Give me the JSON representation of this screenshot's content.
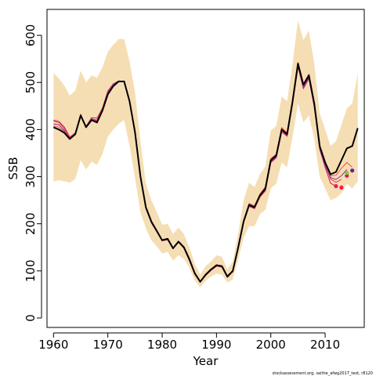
{
  "chart_data": {
    "type": "line",
    "xlabel": "Year",
    "ylabel": "SSB",
    "xlim": [
      1958.8,
      2017.2
    ],
    "ylim": [
      -20,
      655
    ],
    "x_ticks": [
      "1960",
      "1970",
      "1980",
      "1990",
      "2000",
      "2010"
    ],
    "y_ticks": [
      "0",
      "100",
      "200",
      "300",
      "400",
      "500",
      "600"
    ],
    "grid": false,
    "legend": "none",
    "footer_note": "stockassessment.org, saithe_afwg2017_test, r8120",
    "colors": {
      "band": "#f5deb3",
      "main_line": "#000000",
      "retro_lines": [
        "#c2185b",
        "#e53935",
        "#8e24aa",
        "#ef5350",
        "#ab47bc"
      ],
      "retro_points": [
        "#e91e63",
        "#ff1744",
        "#d81b60",
        "#7cd322",
        "#6a1b9a"
      ]
    },
    "x": [
      1960,
      1961,
      1962,
      1963,
      1964,
      1965,
      1966,
      1967,
      1968,
      1969,
      1970,
      1971,
      1972,
      1973,
      1974,
      1975,
      1976,
      1977,
      1978,
      1979,
      1980,
      1981,
      1982,
      1983,
      1984,
      1985,
      1986,
      1987,
      1988,
      1989,
      1990,
      1991,
      1992,
      1993,
      1994,
      1995,
      1996,
      1997,
      1998,
      1999,
      2000,
      2001,
      2002,
      2003,
      2004,
      2005,
      2006,
      2007,
      2008,
      2009,
      2010,
      2011,
      2012,
      2013,
      2014,
      2015,
      2016
    ],
    "series": [
      {
        "role": "estimate",
        "values": [
          405,
          400,
          393,
          380,
          390,
          430,
          405,
          420,
          415,
          440,
          475,
          492,
          502,
          502,
          460,
          395,
          300,
          235,
          205,
          185,
          165,
          168,
          148,
          162,
          150,
          125,
          95,
          77,
          92,
          103,
          112,
          110,
          88,
          100,
          150,
          205,
          240,
          235,
          260,
          275,
          335,
          345,
          400,
          390,
          460,
          540,
          495,
          515,
          455,
          365,
          330,
          305,
          310,
          335,
          360,
          365,
          403
        ]
      }
    ],
    "band": {
      "lower": [
        290,
        292,
        290,
        287,
        295,
        335,
        315,
        332,
        325,
        348,
        385,
        400,
        412,
        420,
        365,
        298,
        225,
        190,
        165,
        152,
        137,
        140,
        122,
        133,
        125,
        107,
        80,
        65,
        79,
        88,
        94,
        92,
        75,
        82,
        125,
        170,
        195,
        195,
        220,
        230,
        275,
        285,
        330,
        320,
        385,
        455,
        415,
        430,
        380,
        300,
        275,
        250,
        255,
        265,
        285,
        275,
        290
      ],
      "upper": [
        520,
        508,
        493,
        472,
        483,
        525,
        500,
        515,
        510,
        532,
        565,
        580,
        592,
        592,
        545,
        480,
        375,
        285,
        250,
        225,
        198,
        200,
        178,
        192,
        178,
        150,
        115,
        92,
        110,
        120,
        133,
        130,
        103,
        120,
        180,
        250,
        287,
        278,
        305,
        322,
        398,
        408,
        470,
        460,
        540,
        632,
        590,
        610,
        540,
        435,
        400,
        365,
        375,
        410,
        445,
        455,
        520
      ]
    },
    "retro_series": [
      {
        "start": 1960,
        "values": [
          420,
          417,
          405,
          384,
          393,
          430,
          407,
          425,
          424,
          445,
          482,
          497,
          503,
          502,
          458,
          392,
          298,
          232,
          202,
          183,
          164,
          166,
          147,
          161,
          148,
          122,
          93,
          76,
          90,
          101,
          110,
          108,
          86,
          98,
          147,
          202,
          237,
          232,
          257,
          270,
          330,
          340,
          395,
          386,
          454,
          533,
          487,
          508,
          448,
          358,
          320,
          286,
          280
        ]
      },
      {
        "start": 1960,
        "values": [
          418,
          415,
          402,
          382,
          392,
          432,
          406,
          422,
          420,
          442,
          478,
          495,
          502,
          503,
          462,
          397,
          302,
          237,
          206,
          186,
          166,
          169,
          149,
          163,
          151,
          126,
          96,
          78,
          92,
          104,
          113,
          111,
          89,
          101,
          151,
          207,
          243,
          238,
          263,
          278,
          338,
          348,
          404,
          393,
          463,
          543,
          497,
          517,
          453,
          362,
          326,
          295,
          288,
          294
        ]
      },
      {
        "start": 1960,
        "values": [
          412,
          410,
          398,
          380,
          391,
          431,
          405,
          423,
          418,
          440,
          479,
          496,
          503,
          501,
          459,
          393,
          299,
          233,
          203,
          184,
          165,
          167,
          148,
          162,
          149,
          124,
          94,
          77,
          91,
          102,
          111,
          109,
          87,
          99,
          149,
          204,
          238,
          234,
          259,
          272,
          332,
          342,
          398,
          388,
          456,
          536,
          490,
          510,
          450,
          360,
          323,
          298,
          294,
          302,
          315
        ]
      },
      {
        "start": 1960,
        "values": [
          408,
          405,
          396,
          381,
          391,
          430,
          406,
          421,
          417,
          441,
          477,
          494,
          502,
          502,
          460,
          395,
          300,
          235,
          205,
          185,
          165,
          168,
          148,
          162,
          150,
          125,
          95,
          77,
          92,
          103,
          112,
          110,
          88,
          100,
          150,
          205,
          240,
          235,
          260,
          275,
          335,
          345,
          400,
          390,
          460,
          540,
          494,
          514,
          454,
          363,
          327,
          302,
          303,
          318,
          330,
          320
        ]
      }
    ],
    "retro_points": [
      {
        "x": 2012,
        "y": 280
      },
      {
        "x": 2013,
        "y": 277
      },
      {
        "x": 2014,
        "y": 302
      },
      {
        "x": 2014,
        "y": 308
      },
      {
        "x": 2015,
        "y": 313
      }
    ]
  }
}
